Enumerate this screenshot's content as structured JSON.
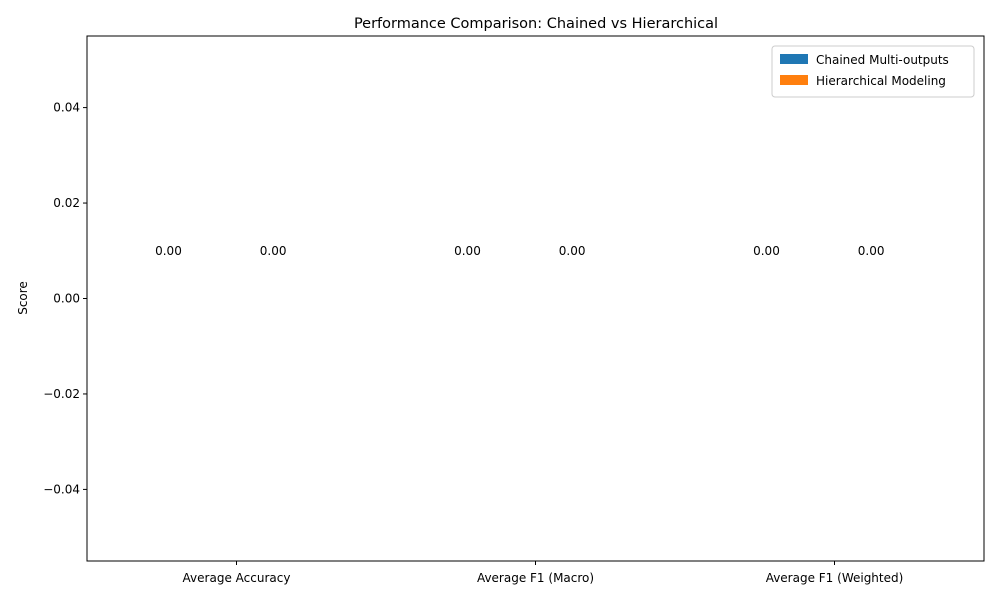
{
  "chart_data": {
    "type": "bar",
    "title": "Performance Comparison: Chained vs Hierarchical",
    "xlabel": "",
    "ylabel": "Score",
    "categories": [
      "Average Accuracy",
      "Average F1 (Macro)",
      "Average F1 (Weighted)"
    ],
    "series": [
      {
        "name": "Chained Multi-outputs",
        "values": [
          0,
          0,
          0
        ],
        "color": "#1f77b4"
      },
      {
        "name": "Hierarchical Modeling",
        "values": [
          0,
          0,
          0
        ],
        "color": "#ff7f0e"
      }
    ],
    "data_labels": [
      [
        "0.00",
        "0.00",
        "0.00"
      ],
      [
        "0.00",
        "0.00",
        "0.00"
      ]
    ],
    "ylim": [
      -0.055,
      0.055
    ],
    "yticks": [
      -0.04,
      -0.02,
      0.0,
      0.02,
      0.04
    ],
    "ytick_labels": [
      "−0.04",
      "−0.02",
      "0.00",
      "0.02",
      "0.04"
    ],
    "legend_position": "top-right",
    "grid": false
  }
}
